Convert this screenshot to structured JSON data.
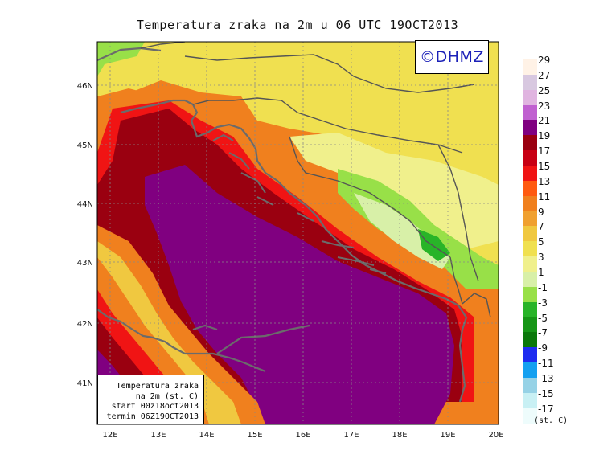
{
  "title": "Temperatura zraka na 2m u 06 UTC 19OCT2013",
  "copyright": "©DHMZ",
  "info_box": {
    "line1": "Temperatura zraka",
    "line2": "na 2m (st. C)",
    "line3": "start 00z18oct2013",
    "line4": "termin 06Z19OCT2013"
  },
  "lat_labels": [
    "46N",
    "45N",
    "44N",
    "43N",
    "42N",
    "41N"
  ],
  "lon_labels": [
    "12E",
    "13E",
    "14E",
    "15E",
    "16E",
    "17E",
    "18E",
    "19E",
    "20E"
  ],
  "colorbar": {
    "labels": [
      "29",
      "27",
      "25",
      "23",
      "21",
      "19",
      "17",
      "15",
      "13",
      "11",
      "9",
      "7",
      "5",
      "3",
      "1",
      "-1",
      "-3",
      "-5",
      "-7",
      "-9",
      "-11",
      "-13",
      "-15",
      "-17"
    ],
    "colors": [
      "#fff2e6",
      "#d8c8e0",
      "#e0b4e0",
      "#c060d0",
      "#800080",
      "#9a0010",
      "#c80014",
      "#f01414",
      "#ff5a10",
      "#f0801e",
      "#f0a030",
      "#f0c840",
      "#f0e050",
      "#f0f08c",
      "#d8f0a8",
      "#98e048",
      "#28b428",
      "#169616",
      "#0a780a",
      "#1e2cf0",
      "#14a0f0",
      "#96d2e6",
      "#c8f0f4",
      "#eefcfc"
    ],
    "unit": "(st. C)"
  }
}
